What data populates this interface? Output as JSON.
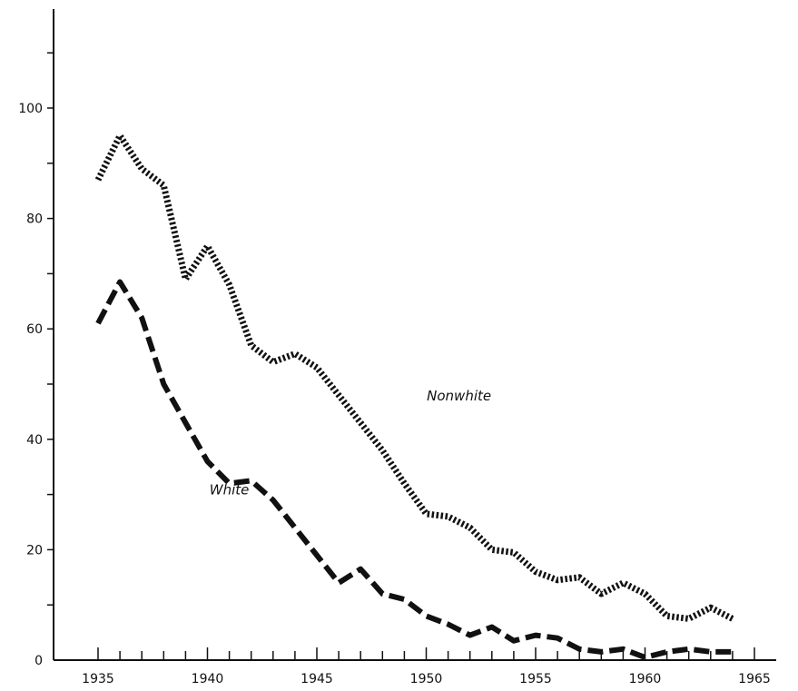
{
  "chart_data": {
    "type": "line",
    "title": "",
    "xlabel": "",
    "ylabel": "",
    "xlim": [
      1932,
      1967
    ],
    "ylim": [
      0,
      120
    ],
    "x_ticks": [
      1935,
      1940,
      1945,
      1950,
      1955,
      1960,
      1965
    ],
    "y_ticks": [
      0,
      20,
      40,
      60,
      80,
      100
    ],
    "grid": false,
    "legend": "none",
    "series": [
      {
        "name": "Nonwhite",
        "style": "dotted",
        "color": "#111111",
        "x": [
          1935,
          1936,
          1937,
          1938,
          1939,
          1940,
          1941,
          1942,
          1943,
          1944,
          1945,
          1946,
          1947,
          1948,
          1949,
          1950,
          1951,
          1952,
          1953,
          1954,
          1955,
          1956,
          1957,
          1958,
          1959,
          1960,
          1961,
          1962,
          1963,
          1964
        ],
        "y": [
          87,
          95,
          89,
          86,
          69,
          75,
          68,
          57,
          54,
          55.5,
          53,
          48,
          43,
          38,
          32,
          26.5,
          26,
          24,
          20,
          19.5,
          16,
          14.5,
          15,
          12,
          14,
          12,
          8,
          7.5,
          9.5,
          7.5
        ]
      },
      {
        "name": "White",
        "style": "dashed",
        "color": "#111111",
        "x": [
          1935,
          1936,
          1937,
          1938,
          1939,
          1940,
          1941,
          1942,
          1943,
          1944,
          1945,
          1946,
          1947,
          1948,
          1949,
          1950,
          1951,
          1952,
          1953,
          1954,
          1955,
          1956,
          1957,
          1958,
          1959,
          1960,
          1961,
          1962,
          1963,
          1964
        ],
        "y": [
          61,
          68.5,
          62,
          50,
          43,
          36,
          32,
          32.5,
          29,
          24,
          19,
          14,
          16.5,
          12,
          11,
          8,
          6.5,
          4.5,
          6,
          3.5,
          4.5,
          4,
          2,
          1.5,
          2,
          0.5,
          1.5,
          2,
          1.5,
          1.5
        ]
      }
    ],
    "annotations": [
      {
        "text": "Nonwhite",
        "x": 1951.5,
        "y": 47
      },
      {
        "text": "White",
        "x": 1941,
        "y": 30
      }
    ]
  }
}
